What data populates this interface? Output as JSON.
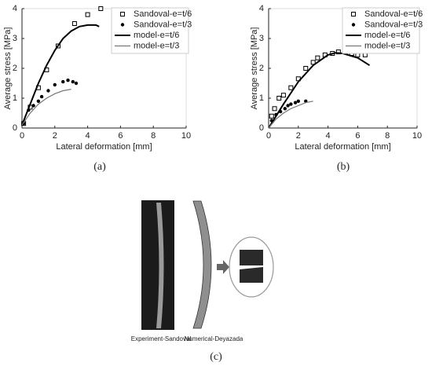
{
  "chart_data": [
    {
      "type": "scatter",
      "caption": "(a)",
      "xlabel": "Lateral deformation [mm]",
      "ylabel": "Average stress [MPa]",
      "xlim": [
        0,
        10
      ],
      "ylim": [
        0,
        4
      ],
      "xticks": [
        0,
        2,
        4,
        6,
        8,
        10
      ],
      "yticks": [
        0,
        1,
        2,
        3,
        4
      ],
      "legend": "upper right",
      "series": [
        {
          "name": "Sandoval-e=t/6",
          "kind": "square",
          "color": "#000000",
          "x": [
            0.1,
            0.5,
            1.0,
            1.5,
            2.2,
            3.2,
            4.0,
            4.8
          ],
          "values": [
            0.15,
            0.7,
            1.35,
            1.95,
            2.75,
            3.5,
            3.8,
            4.0
          ]
        },
        {
          "name": "Sandoval-e=t/3",
          "kind": "dot",
          "color": "#000000",
          "x": [
            0.1,
            0.4,
            0.7,
            1.0,
            1.2,
            1.6,
            2.0,
            2.5,
            2.8,
            3.1,
            3.3
          ],
          "values": [
            0.15,
            0.6,
            0.75,
            0.9,
            1.05,
            1.25,
            1.45,
            1.55,
            1.6,
            1.55,
            1.5
          ]
        },
        {
          "name": "model-e=t/6",
          "kind": "line",
          "color": "#000000",
          "width": 2,
          "x": [
            0,
            0.5,
            1,
            1.5,
            2,
            2.5,
            3,
            3.5,
            4,
            4.5,
            4.7
          ],
          "values": [
            0.1,
            0.8,
            1.5,
            2.1,
            2.6,
            3.0,
            3.25,
            3.4,
            3.45,
            3.45,
            3.4
          ]
        },
        {
          "name": "model-e=t/3",
          "kind": "line",
          "color": "#777777",
          "width": 1.2,
          "x": [
            0,
            0.5,
            1,
            1.5,
            2,
            2.5,
            3
          ],
          "values": [
            0.1,
            0.5,
            0.8,
            1.0,
            1.15,
            1.25,
            1.3
          ]
        }
      ]
    },
    {
      "type": "scatter",
      "caption": "(b)",
      "xlabel": "Lateral deformation [mm]",
      "ylabel": "Average stress [MPa]",
      "xlim": [
        0,
        10
      ],
      "ylim": [
        0,
        4
      ],
      "xticks": [
        0,
        2,
        4,
        6,
        8,
        10
      ],
      "yticks": [
        0,
        1,
        2,
        3,
        4
      ],
      "legend": "upper right",
      "series": [
        {
          "name": "Sandoval-e=t/6",
          "kind": "square",
          "color": "#000000",
          "x": [
            0.2,
            0.4,
            0.7,
            1.0,
            1.5,
            2.0,
            2.5,
            3.0,
            3.3,
            3.8,
            4.3,
            4.7,
            5.2,
            5.6,
            6.0,
            6.5
          ],
          "values": [
            0.4,
            0.65,
            1.0,
            1.1,
            1.35,
            1.65,
            2.0,
            2.2,
            2.35,
            2.45,
            2.5,
            2.55,
            2.55,
            2.5,
            2.45,
            2.45
          ]
        },
        {
          "name": "Sandoval-e=t/3",
          "kind": "dot",
          "color": "#000000",
          "x": [
            0.2,
            0.5,
            0.8,
            1.1,
            1.3,
            1.5,
            1.8,
            2.0,
            2.5
          ],
          "values": [
            0.25,
            0.45,
            0.55,
            0.65,
            0.75,
            0.8,
            0.85,
            0.9,
            0.9
          ]
        },
        {
          "name": "model-e=t/6",
          "kind": "line",
          "color": "#000000",
          "width": 2,
          "x": [
            0,
            0.5,
            1,
            2,
            3,
            4,
            4.5,
            5,
            6,
            6.8
          ],
          "values": [
            0,
            0.4,
            0.8,
            1.55,
            2.1,
            2.45,
            2.52,
            2.5,
            2.35,
            2.1
          ]
        },
        {
          "name": "model-e=t/3",
          "kind": "line",
          "color": "#777777",
          "width": 1.2,
          "x": [
            0,
            0.5,
            1,
            1.5,
            2,
            2.5,
            3
          ],
          "values": [
            0,
            0.3,
            0.5,
            0.65,
            0.75,
            0.85,
            0.9
          ]
        }
      ]
    }
  ],
  "figure_c": {
    "caption": "(c)",
    "labels": [
      "Experiment-Sandoval",
      "Numerical-Deyazada"
    ]
  }
}
